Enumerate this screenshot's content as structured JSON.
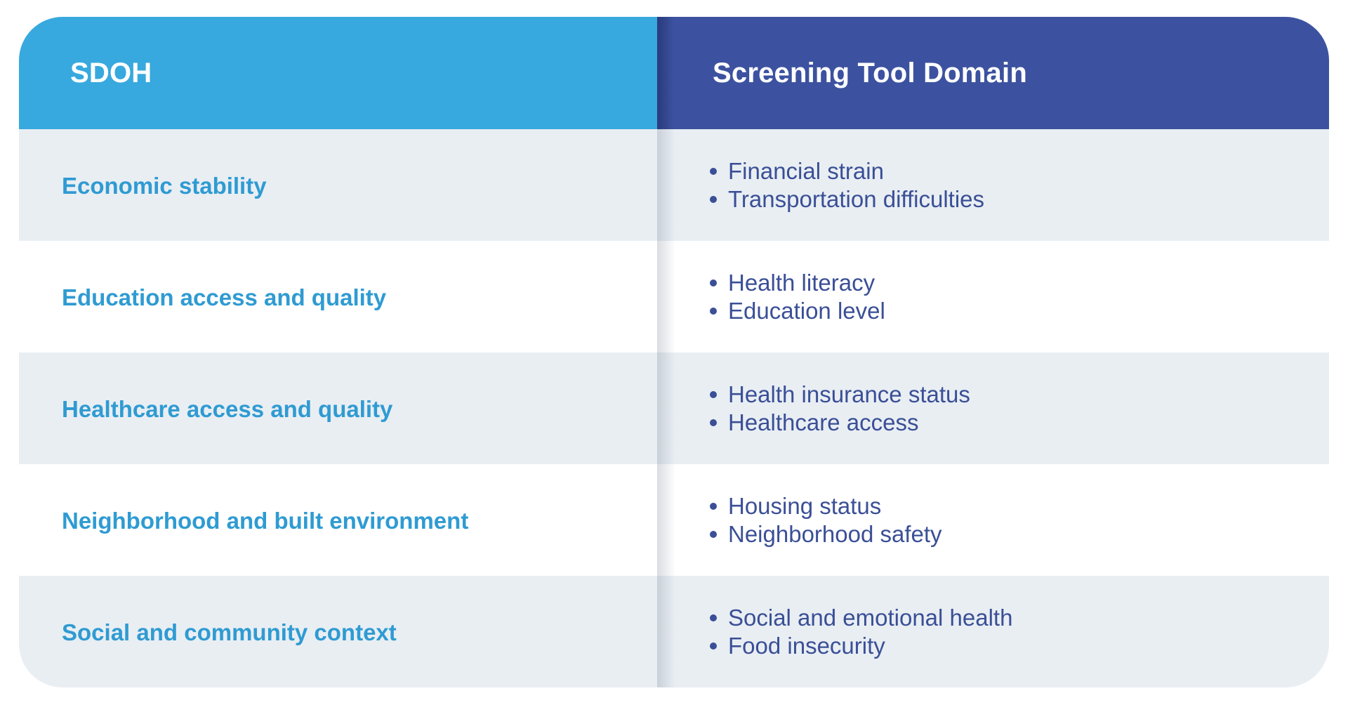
{
  "header": {
    "left": "SDOH",
    "right": "Screening Tool Domain"
  },
  "rows": [
    {
      "sdoh": "Economic stability",
      "domains": [
        "Financial strain",
        "Transportation difficulties"
      ]
    },
    {
      "sdoh": "Education access and quality",
      "domains": [
        "Health literacy",
        "Education level"
      ]
    },
    {
      "sdoh": "Healthcare access and quality",
      "domains": [
        "Health insurance status",
        "Healthcare access"
      ]
    },
    {
      "sdoh": "Neighborhood and built environment",
      "domains": [
        "Housing status",
        "Neighborhood safety"
      ]
    },
    {
      "sdoh": "Social and community context",
      "domains": [
        "Social and emotional health",
        "Food insecurity"
      ]
    }
  ],
  "colors": {
    "header_left": "#37a9df",
    "header_right": "#3c52a0",
    "row_shaded": "#e9eef3",
    "sdoh_text": "#2f9bd2",
    "domain_text": "#3a4f96"
  }
}
